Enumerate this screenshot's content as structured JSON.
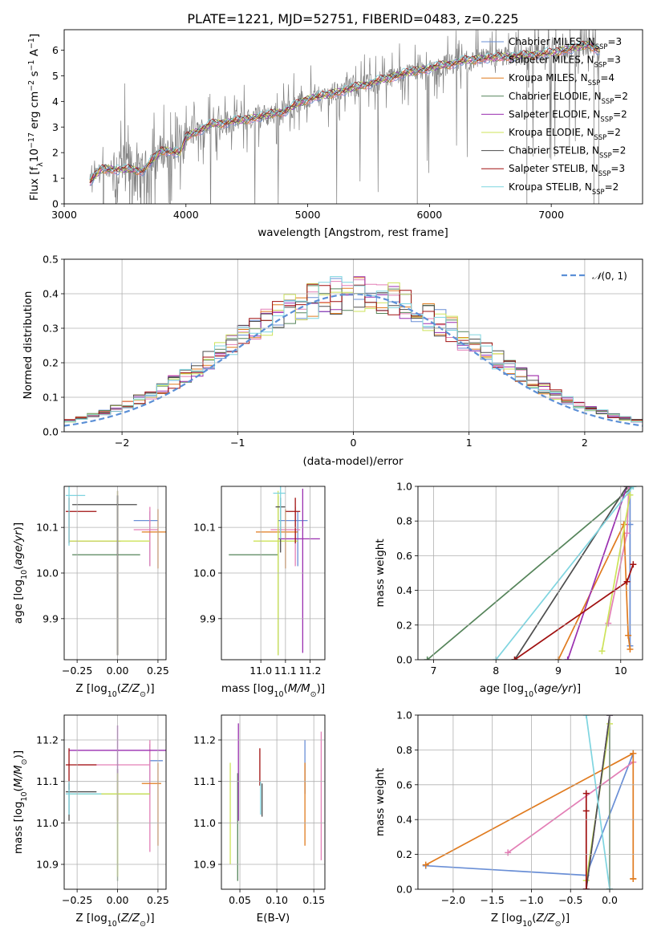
{
  "title": "PLATE=1221, MJD=52751, FIBERID=0483, z=0.225",
  "colors": {
    "Chabrier MILES": "#6a8fd6",
    "Salpeter MILES": "#e37fb6",
    "Kroupa MILES": "#e07b1f",
    "Chabrier ELODIE": "#55845a",
    "Salpeter ELODIE": "#9a2fb0",
    "Kroupa ELODIE": "#cde35a",
    "Chabrier STELIB": "#4d4d4d",
    "Salpeter STELIB": "#a01010",
    "Kroupa STELIB": "#7fd5e0",
    "data": "#808080",
    "gauss": "#5b8fd6"
  },
  "chart_data": [
    {
      "type": "line",
      "id": "spectrum",
      "title": "PLATE=1221, MJD=52751, FIBERID=0483, z=0.225",
      "xlabel": "wavelength [Angstrom, rest frame]",
      "ylabel": "Flux [fλ10⁻¹⁷ erg cm⁻² s⁻¹ A⁻¹]",
      "xlim": [
        3000,
        7750
      ],
      "ylim": [
        0,
        6.8
      ],
      "xticks": [
        3000,
        4000,
        5000,
        6000,
        7000
      ],
      "yticks": [
        0,
        1,
        2,
        3,
        4,
        5,
        6
      ],
      "continuum_knots": [
        [
          3210,
          0.85
        ],
        [
          3300,
          1.35
        ],
        [
          3500,
          1.35
        ],
        [
          3650,
          1.3
        ],
        [
          3800,
          2.1
        ],
        [
          3950,
          2.0
        ],
        [
          4000,
          2.6
        ],
        [
          4200,
          3.1
        ],
        [
          4500,
          3.3
        ],
        [
          4800,
          3.6
        ],
        [
          5000,
          4.1
        ],
        [
          5200,
          4.3
        ],
        [
          5500,
          4.7
        ],
        [
          5800,
          5.1
        ],
        [
          6000,
          5.3
        ],
        [
          6300,
          5.6
        ],
        [
          6500,
          5.7
        ],
        [
          6800,
          5.8
        ],
        [
          7000,
          5.9
        ],
        [
          7300,
          6.2
        ],
        [
          7400,
          6.0
        ]
      ],
      "legend": [
        {
          "name": "Chabrier MILES, N",
          "nssp": "3"
        },
        {
          "name": "Salpeter MILES, N",
          "nssp": "3"
        },
        {
          "name": "Kroupa MILES, N",
          "nssp": "4"
        },
        {
          "name": "Chabrier ELODIE, N",
          "nssp": "2"
        },
        {
          "name": "Salpeter ELODIE, N",
          "nssp": "2"
        },
        {
          "name": "Kroupa ELODIE, N",
          "nssp": "2"
        },
        {
          "name": "Chabrier STELIB, N",
          "nssp": "2"
        },
        {
          "name": "Salpeter STELIB, N",
          "nssp": "3"
        },
        {
          "name": "Kroupa STELIB, N",
          "nssp": "2"
        }
      ],
      "legend_sub": "SSP",
      "legend_placement": "right"
    },
    {
      "type": "area",
      "id": "residuals",
      "xlabel": "(data-model)/error",
      "ylabel": "Normed distribution",
      "xlim": [
        -2.5,
        2.5
      ],
      "ylim": [
        0,
        0.5
      ],
      "xticks": [
        -2,
        -1,
        0,
        1,
        2
      ],
      "ytick_values": [
        0.0,
        0.1,
        0.2,
        0.3,
        0.4,
        0.5
      ],
      "ytick_labels": [
        "0.0",
        "0.1",
        "0.2",
        "0.3",
        "0.4",
        "0.5"
      ],
      "xtick_labels": [
        "−2",
        "−1",
        "0",
        "1",
        "2"
      ],
      "legend": "𝒩(0, 1)",
      "grid": true
    },
    {
      "type": "scatter",
      "id": "age-Z",
      "xlabel": "Z [log10(Z/Z⊙)]",
      "ylabel": "age [log10(age/yr)]",
      "xlim": [
        -0.33,
        0.3
      ],
      "ylim": [
        9.81,
        10.19
      ],
      "xticks": [
        -0.25,
        0.0,
        0.25
      ],
      "xtick_labels": [
        "−0.25",
        "0.00",
        "0.25"
      ],
      "yticks": [
        9.9,
        10.0,
        10.1
      ],
      "yticks_labels": [
        "9.9",
        "10.0",
        "10.1"
      ],
      "points": [
        {
          "m": "Chabrier MILES",
          "x": 0.2,
          "xe": [
            0.1,
            0.05
          ],
          "y": 10.115,
          "ye": [
            0.1,
            0.02
          ]
        },
        {
          "m": "Salpeter MILES",
          "x": 0.2,
          "xe": [
            0.1,
            0.05
          ],
          "y": 10.095,
          "ye": [
            0.08,
            0.05
          ]
        },
        {
          "m": "Kroupa MILES",
          "x": 0.25,
          "xe": [
            0.1,
            0.05
          ],
          "y": 10.09,
          "ye": [
            0.08,
            0.05
          ]
        },
        {
          "m": "Chabrier ELODIE",
          "x": 0.0,
          "xe": [
            0.28,
            0.14
          ],
          "y": 10.04,
          "ye": [
            0.22,
            0.13
          ]
        },
        {
          "m": "Salpeter ELODIE",
          "x": 0.0,
          "xe": [
            0.3,
            0.02
          ],
          "y": 10.07,
          "ye": [
            0.25,
            0.11
          ]
        },
        {
          "m": "Kroupa ELODIE",
          "x": 0.0,
          "xe": [
            0.3,
            0.2
          ],
          "y": 10.07,
          "ye": [
            0.25,
            0.11
          ]
        },
        {
          "m": "Chabrier STELIB",
          "x": 0.0,
          "xe": [
            0.28,
            0.12
          ],
          "y": 10.15,
          "ye": [
            0.33,
            0.02
          ]
        },
        {
          "m": "Salpeter STELIB",
          "x": -0.3,
          "xe": [
            0.02,
            0.17
          ],
          "y": 10.135,
          "ye": [
            0.07,
            0.03
          ]
        },
        {
          "m": "Kroupa STELIB",
          "x": -0.3,
          "xe": [
            0.02,
            0.1
          ],
          "y": 10.17,
          "ye": [
            0.11,
            0.02
          ]
        }
      ]
    },
    {
      "type": "scatter",
      "id": "age-mass",
      "xlabel": "mass [log10(M/M⊙)]",
      "xlim": [
        10.84,
        11.26
      ],
      "ylim": [
        9.81,
        10.19
      ],
      "xticks": [
        11.0,
        11.1,
        11.2
      ],
      "xtick_labels": [
        "11.0",
        "11.1",
        "11.2"
      ],
      "yticks": [
        9.9,
        10.0,
        10.1
      ],
      "yticks_labels": [
        "9.9",
        "10.0",
        "10.1"
      ],
      "points": [
        {
          "m": "Chabrier MILES",
          "x": 11.15,
          "xe": [
            0.08,
            0.04
          ],
          "y": 10.115,
          "ye": [
            0.1,
            0.02
          ]
        },
        {
          "m": "Salpeter MILES",
          "x": 11.14,
          "xe": [
            0.1,
            0.02
          ],
          "y": 10.095,
          "ye": [
            0.08,
            0.05
          ]
        },
        {
          "m": "Kroupa MILES",
          "x": 11.1,
          "xe": [
            0.12,
            0.05
          ],
          "y": 10.09,
          "ye": [
            0.08,
            0.05
          ]
        },
        {
          "m": "Chabrier ELODIE",
          "x": 11.07,
          "xe": [
            0.2,
            0.0
          ],
          "y": 10.04,
          "ye": [
            0.22,
            0.13
          ]
        },
        {
          "m": "Salpeter ELODIE",
          "x": 11.17,
          "xe": [
            0.1,
            0.07
          ],
          "y": 10.075,
          "ye": [
            0.25,
            0.11
          ]
        },
        {
          "m": "Kroupa ELODIE",
          "x": 11.07,
          "xe": [
            0.1,
            0.08
          ],
          "y": 10.07,
          "ye": [
            0.25,
            0.11
          ]
        },
        {
          "m": "Chabrier STELIB",
          "x": 11.08,
          "xe": [
            0.02,
            0.02
          ],
          "y": 10.145,
          "ye": [
            0.1,
            0.02
          ]
        },
        {
          "m": "Salpeter STELIB",
          "x": 11.14,
          "xe": [
            0.04,
            0.02
          ],
          "y": 10.135,
          "ye": [
            0.07,
            0.03
          ]
        },
        {
          "m": "Kroupa STELIB",
          "x": 11.08,
          "xe": [
            0.03,
            0.02
          ],
          "y": 10.175,
          "ye": [
            0.1,
            0.02
          ]
        }
      ]
    },
    {
      "type": "line",
      "id": "massweight-age",
      "xlabel": "age [log10(age/yr)]",
      "ylabel": "mass weight",
      "xlim": [
        6.75,
        10.35
      ],
      "ylim": [
        0,
        1
      ],
      "xticks": [
        7,
        8,
        9,
        10
      ],
      "yticks": [
        0.0,
        0.2,
        0.4,
        0.6,
        0.8,
        1.0
      ],
      "ytick_labels": [
        "0.0",
        "0.2",
        "0.4",
        "0.6",
        "0.8",
        "1.0"
      ],
      "series": [
        {
          "m": "Chabrier MILES",
          "x": [
            10.15,
            10.15,
            10.15
          ],
          "y": [
            0.08,
            0.78,
            1.0
          ]
        },
        {
          "m": "Salpeter MILES",
          "x": [
            9.8,
            10.1,
            10.13
          ],
          "y": [
            0.21,
            0.73,
            1.0
          ]
        },
        {
          "m": "Kroupa MILES",
          "x": [
            9.0,
            10.05,
            10.12,
            10.15
          ],
          "y": [
            0.0,
            0.78,
            0.14,
            0.06
          ]
        },
        {
          "m": "Chabrier ELODIE",
          "x": [
            6.9,
            10.2
          ],
          "y": [
            0.0,
            1.0
          ]
        },
        {
          "m": "Salpeter ELODIE",
          "x": [
            9.15,
            10.1
          ],
          "y": [
            0.0,
            1.0
          ]
        },
        {
          "m": "Kroupa ELODIE",
          "x": [
            9.7,
            10.15
          ],
          "y": [
            0.05,
            0.95
          ]
        },
        {
          "m": "Chabrier STELIB",
          "x": [
            8.3,
            10.1
          ],
          "y": [
            0.0,
            1.0
          ]
        },
        {
          "m": "Salpeter STELIB",
          "x": [
            8.3,
            10.1,
            10.2
          ],
          "y": [
            0.0,
            0.45,
            0.55
          ]
        },
        {
          "m": "Kroupa STELIB",
          "x": [
            8.0,
            10.2
          ],
          "y": [
            0.0,
            1.0
          ]
        }
      ]
    },
    {
      "type": "scatter",
      "id": "mass-Z",
      "xlabel": "Z [log10(Z/Z⊙)]",
      "ylabel": "mass [log10(M/M⊙)]",
      "xlim": [
        -0.33,
        0.3
      ],
      "ylim": [
        10.84,
        11.26
      ],
      "xticks": [
        -0.25,
        0.0,
        0.25
      ],
      "xtick_labels": [
        "−0.25",
        "0.00",
        "0.25"
      ],
      "yticks": [
        10.9,
        11.0,
        11.1,
        11.2
      ],
      "yticks_labels": [
        "10.9",
        "11.0",
        "11.1",
        "11.2"
      ],
      "points": [
        {
          "m": "Chabrier MILES",
          "x": 0.2,
          "xe": [
            0.0,
            0.08
          ],
          "y": 11.15,
          "ye": [
            0.08,
            0.04
          ]
        },
        {
          "m": "Salpeter MILES",
          "x": 0.2,
          "xe": [
            0.45,
            0.0
          ],
          "y": 11.14,
          "ye": [
            0.21,
            0.06
          ]
        },
        {
          "m": "Kroupa MILES",
          "x": 0.25,
          "xe": [
            0.1,
            0.02
          ],
          "y": 11.095,
          "ye": [
            0.15,
            0.05
          ]
        },
        {
          "m": "Chabrier ELODIE",
          "x": 0.0,
          "xe": [
            0.3,
            0.2
          ],
          "y": 11.07,
          "ye": [
            0.21,
            0.06
          ]
        },
        {
          "m": "Salpeter ELODIE",
          "x": 0.0,
          "xe": [
            0.3,
            0.4
          ],
          "y": 11.175,
          "ye": [
            0.17,
            0.06
          ]
        },
        {
          "m": "Kroupa ELODIE",
          "x": 0.0,
          "xe": [
            0.3,
            0.2
          ],
          "y": 11.07,
          "ye": [
            0.2,
            0.05
          ]
        },
        {
          "m": "Chabrier STELIB",
          "x": -0.3,
          "xe": [
            0.02,
            0.17
          ],
          "y": 11.075,
          "ye": [
            0.07,
            0.02
          ]
        },
        {
          "m": "Salpeter STELIB",
          "x": -0.3,
          "xe": [
            0.02,
            0.17
          ],
          "y": 11.14,
          "ye": [
            0.06,
            0.04
          ]
        },
        {
          "m": "Kroupa STELIB",
          "x": -0.3,
          "xe": [
            0.02,
            0.2
          ],
          "y": 11.07,
          "ye": [
            0.05,
            0.03
          ]
        }
      ]
    },
    {
      "type": "scatter",
      "id": "mass-EBV",
      "xlabel": "E(B-V)",
      "xlim": [
        0.025,
        0.165
      ],
      "ylim": [
        10.84,
        11.26
      ],
      "xticks": [
        0.05,
        0.1,
        0.15
      ],
      "xtick_labels": [
        "0.05",
        "0.10",
        "0.15"
      ],
      "yticks": [
        10.9,
        11.0,
        11.1,
        11.2
      ],
      "yticks_labels": [
        "10.9",
        "11.0",
        "11.1",
        "11.2"
      ],
      "points": [
        {
          "m": "Chabrier MILES",
          "x": 0.138,
          "xe": [
            0,
            0
          ],
          "y": 11.15,
          "ye": [
            0.08,
            0.05
          ]
        },
        {
          "m": "Salpeter MILES",
          "x": 0.16,
          "xe": [
            0,
            0
          ],
          "y": 11.14,
          "ye": [
            0.23,
            0.08
          ]
        },
        {
          "m": "Kroupa MILES",
          "x": 0.138,
          "xe": [
            0,
            0
          ],
          "y": 11.095,
          "ye": [
            0.15,
            0.05
          ]
        },
        {
          "m": "Chabrier ELODIE",
          "x": 0.047,
          "xe": [
            0,
            0
          ],
          "y": 11.07,
          "ye": [
            0.21,
            0.05
          ]
        },
        {
          "m": "Salpeter ELODIE",
          "x": 0.048,
          "xe": [
            0,
            0
          ],
          "y": 11.175,
          "ye": [
            0.17,
            0.065
          ]
        },
        {
          "m": "Kroupa ELODIE",
          "x": 0.037,
          "xe": [
            0,
            0
          ],
          "y": 11.07,
          "ye": [
            0.17,
            0.075
          ]
        },
        {
          "m": "Chabrier STELIB",
          "x": 0.08,
          "xe": [
            0,
            0
          ],
          "y": 11.075,
          "ye": [
            0.06,
            0.02
          ]
        },
        {
          "m": "Salpeter STELIB",
          "x": 0.077,
          "xe": [
            0,
            0
          ],
          "y": 11.14,
          "ye": [
            0.05,
            0.04
          ]
        },
        {
          "m": "Kroupa STELIB",
          "x": 0.078,
          "xe": [
            0,
            0
          ],
          "y": 11.07,
          "ye": [
            0.05,
            0.03
          ]
        }
      ]
    },
    {
      "type": "line",
      "id": "massweight-Z",
      "xlabel": "Z [log10(Z/Z⊙)]",
      "ylabel": "mass weight",
      "xlim": [
        -2.45,
        0.42
      ],
      "ylim": [
        0,
        1
      ],
      "xticks": [
        -2.0,
        -1.5,
        -1.0,
        -0.5,
        0.0
      ],
      "xtick_labels": [
        "−2.0",
        "−1.5",
        "−1.0",
        "−0.5",
        "0.0"
      ],
      "yticks": [
        0.0,
        0.2,
        0.4,
        0.6,
        0.8,
        1.0
      ],
      "ytick_labels": [
        "0.0",
        "0.2",
        "0.4",
        "0.6",
        "0.8",
        "1.0"
      ],
      "series": [
        {
          "m": "Chabrier MILES",
          "x": [
            -2.35,
            -0.3,
            0.3
          ],
          "y": [
            0.135,
            0.08,
            0.78
          ]
        },
        {
          "m": "Salpeter MILES",
          "x": [
            -1.3,
            0.3
          ],
          "y": [
            0.21,
            0.73
          ]
        },
        {
          "m": "Kroupa MILES",
          "x": [
            -2.35,
            0.3,
            0.3,
            0.3
          ],
          "y": [
            0.14,
            0.78,
            0.06,
            0.06
          ]
        },
        {
          "m": "Chabrier ELODIE",
          "x": [
            0.0,
            0.0
          ],
          "y": [
            0.0,
            1.0
          ]
        },
        {
          "m": "Salpeter ELODIE",
          "x": [
            -0.3,
            0.0
          ],
          "y": [
            0.0,
            1.0
          ]
        },
        {
          "m": "Kroupa ELODIE",
          "x": [
            -0.3,
            0.0
          ],
          "y": [
            0.05,
            0.95
          ]
        },
        {
          "m": "Chabrier STELIB",
          "x": [
            -0.3,
            0.0
          ],
          "y": [
            0.0,
            1.0
          ]
        },
        {
          "m": "Salpeter STELIB",
          "x": [
            -0.3,
            -0.3,
            -0.3
          ],
          "y": [
            0.0,
            0.45,
            0.55
          ]
        },
        {
          "m": "Kroupa STELIB",
          "x": [
            -0.3,
            0.0
          ],
          "y": [
            1.0,
            0.0
          ]
        }
      ]
    }
  ]
}
